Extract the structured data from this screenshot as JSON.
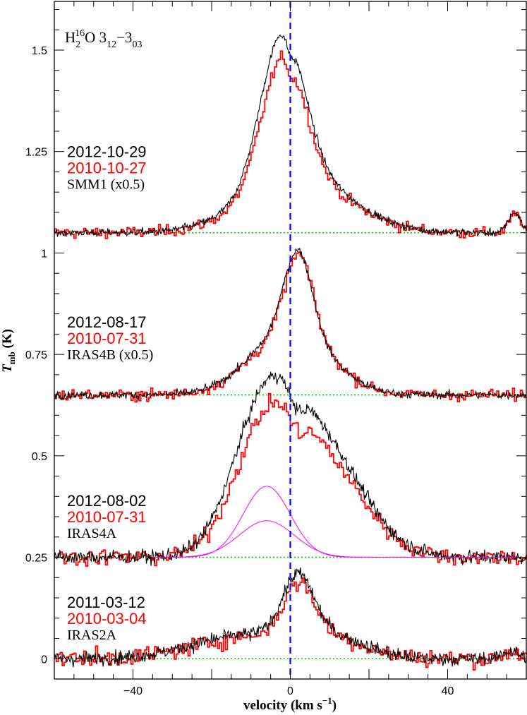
{
  "chart_data": {
    "type": "line",
    "title": {
      "main": "H",
      "sub1": "2",
      "sup1": "16",
      "mid": "O 3",
      "sub2": "12",
      "dash": "−3",
      "sub3": "03"
    },
    "xlabel": "velocity (km s",
    "xlabel_sup": "−1",
    "xlabel_close": ")",
    "ylabel": "T",
    "ylabel_sub": "mb",
    "ylabel_unit": " (K)",
    "xlim": [
      -60,
      60
    ],
    "ylim": [
      -0.05,
      1.62
    ],
    "xticks": [
      -40,
      0,
      40
    ],
    "xtick_labels": [
      "−40",
      "0",
      "40"
    ],
    "yticks": [
      0,
      0.25,
      0.5,
      0.75,
      1,
      1.25,
      1.5
    ],
    "ytick_labels": [
      "0",
      "0.25",
      "0.5",
      "0.75",
      "1",
      "1.25",
      "1.5"
    ],
    "vline_x": 0,
    "colors": {
      "new_epoch": "#000000",
      "old_epoch": "#ff0000",
      "baseline": "#00cc00",
      "vline": "#0000ff",
      "gaussian": "#ff00ff"
    },
    "panels": [
      {
        "source": "SMM1 (x0.5)",
        "dates": [
          "2012-10-29",
          "2010-10-27"
        ],
        "baseline": 1.05,
        "components": [
          {
            "center": -2.0,
            "amp": 0.36,
            "width": 5.5
          },
          {
            "center": 2.0,
            "amp": 0.14,
            "width": 13.0
          }
        ],
        "dip": {
          "center": 0,
          "amp": 0.04,
          "width": 1.0
        },
        "bump": {
          "center": 57,
          "amp": 0.05,
          "width": 1.5
        },
        "old_scale": 0.88,
        "noise": 0.008,
        "old_noise": 0.012,
        "labels_y": [
          1.25,
          1.21,
          1.17
        ]
      },
      {
        "source": "IRAS4B (x0.5)",
        "dates": [
          "2012-08-17",
          "2010-07-31"
        ],
        "baseline": 0.65,
        "components": [
          {
            "center": 2.0,
            "amp": 0.2,
            "width": 3.5
          },
          {
            "center": 0.0,
            "amp": 0.16,
            "width": 10.0
          }
        ],
        "dip": null,
        "bump": null,
        "old_scale": 0.97,
        "noise": 0.008,
        "old_noise": 0.012,
        "labels_y": [
          0.83,
          0.79,
          0.75
        ]
      },
      {
        "source": "IRAS4A",
        "dates": [
          "2012-08-02",
          "2010-07-31"
        ],
        "baseline": 0.25,
        "components": [
          {
            "center": -7.0,
            "amp": 0.3,
            "width": 8.0
          },
          {
            "center": 7.0,
            "amp": 0.28,
            "width": 11.0
          }
        ],
        "dip": {
          "center": 1.5,
          "amp": 0.05,
          "width": 2.0
        },
        "bump": null,
        "old_scale": 0.85,
        "noise": 0.014,
        "old_noise": 0.018,
        "gaussians": [
          {
            "center": -6,
            "amp": 0.175,
            "width": 6.0
          },
          {
            "center": -6,
            "amp": 0.09,
            "width": 7.0
          }
        ],
        "labels_y": [
          0.39,
          0.35,
          0.31
        ]
      },
      {
        "source": "IRAS2A",
        "dates": [
          "2011-03-12",
          "2010-03-04"
        ],
        "baseline": 0.0,
        "components": [
          {
            "center": 2.0,
            "amp": 0.15,
            "width": 4.0
          },
          {
            "center": -10.0,
            "amp": 0.06,
            "width": 14.0
          },
          {
            "center": 12.0,
            "amp": 0.04,
            "width": 8.0
          }
        ],
        "dip": null,
        "bump": {
          "center": 56,
          "amp": 0.02,
          "width": 2.0
        },
        "old_scale": 0.9,
        "noise": 0.014,
        "old_noise": 0.018,
        "labels_y": [
          0.14,
          0.1,
          0.06
        ]
      }
    ]
  }
}
